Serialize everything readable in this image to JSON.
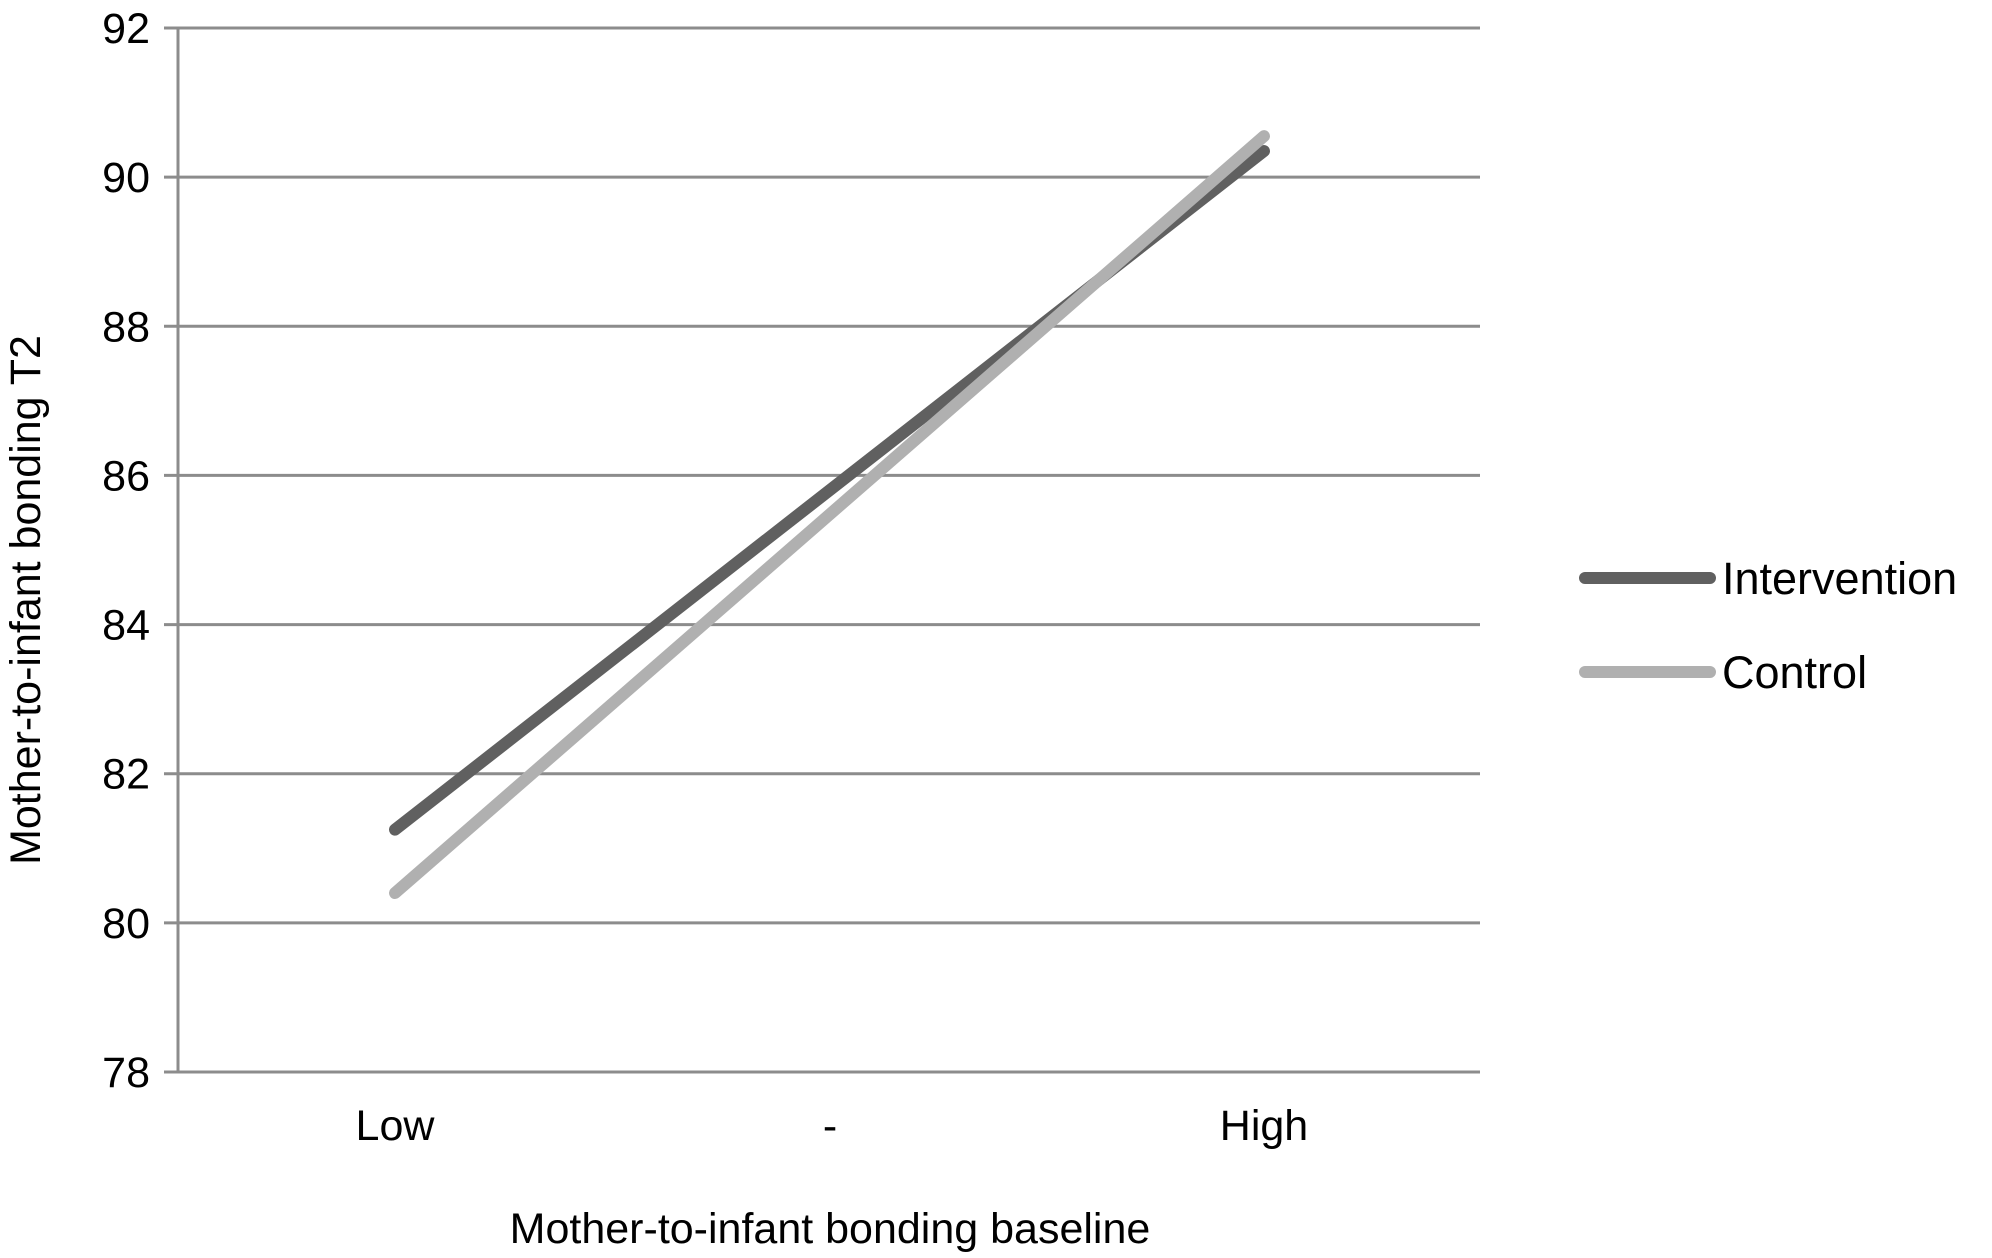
{
  "chart_data": {
    "type": "line",
    "title": "",
    "xlabel": "Mother-to-infant bonding baseline",
    "ylabel": "Mother-to-infant  bonding T2",
    "categories": [
      "Low",
      "-",
      "High"
    ],
    "ylim": [
      78,
      92
    ],
    "yticks": [
      78,
      80,
      82,
      84,
      86,
      88,
      90,
      92
    ],
    "grid": "horizontal",
    "legend_position": "right",
    "series": [
      {
        "name": "Intervention",
        "color": "#606060",
        "points": [
          {
            "x": "Low",
            "y": 81.25
          },
          {
            "x": "High",
            "y": 90.35
          }
        ]
      },
      {
        "name": "Control",
        "color": "#b0b0b0",
        "points": [
          {
            "x": "Low",
            "y": 80.4
          },
          {
            "x": "High",
            "y": 90.55
          }
        ]
      }
    ]
  }
}
